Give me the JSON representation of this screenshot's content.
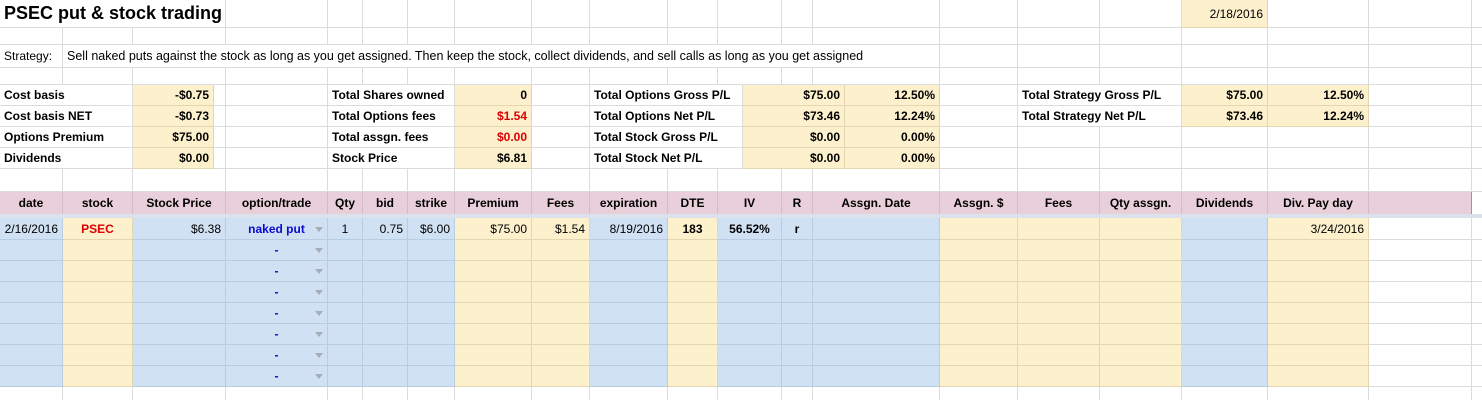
{
  "title": "PSEC put & stock trading",
  "date_top_right": "2/18/2016",
  "strategy": {
    "label": "Strategy:",
    "text": "Sell naked puts against the stock as long as you get assigned. Then keep the stock, collect dividends, and sell calls as long as you get assigned"
  },
  "summary": {
    "section1": [
      {
        "label": "Cost basis",
        "value": "-$0.75"
      },
      {
        "label": "Cost basis NET",
        "value": "-$0.73"
      },
      {
        "label": "Options Premium",
        "value": "$75.00"
      },
      {
        "label": "Dividends",
        "value": "$0.00"
      }
    ],
    "section2": [
      {
        "label": "Total Shares owned",
        "value": "0",
        "red": false
      },
      {
        "label": "Total Options fees",
        "value": "$1.54",
        "red": true
      },
      {
        "label": "Total assgn. fees",
        "value": "$0.00",
        "red": true
      },
      {
        "label": "Stock Price",
        "value": "$6.81",
        "red": false
      }
    ],
    "section3": [
      {
        "label": "Total Options Gross P/L",
        "value": "$75.00",
        "pct": "12.50%"
      },
      {
        "label": "Total Options Net P/L",
        "value": "$73.46",
        "pct": "12.24%"
      },
      {
        "label": "Total Stock Gross P/L",
        "value": "$0.00",
        "pct": "0.00%"
      },
      {
        "label": "Total Stock Net P/L",
        "value": "$0.00",
        "pct": "0.00%"
      }
    ],
    "section4": [
      {
        "label": "Total Strategy Gross P/L",
        "value": "$75.00",
        "pct": "12.50%"
      },
      {
        "label": "Total Strategy Net P/L",
        "value": "$73.46",
        "pct": "12.24%"
      }
    ]
  },
  "table": {
    "headers": [
      "date",
      "stock",
      "Stock Price",
      "option/trade",
      "Qty",
      "bid",
      "strike",
      "Premium",
      "Fees",
      "expiration",
      "DTE",
      "IV",
      "R",
      "Assgn. Date",
      "Assgn. $",
      "Fees",
      "Qty assgn.",
      "Dividends",
      "Div. Pay day"
    ],
    "row1": {
      "date": "2/16/2016",
      "stock": "PSEC",
      "stock_price": "$6.38",
      "option_trade": "naked put",
      "qty": "1",
      "bid": "0.75",
      "strike": "$6.00",
      "premium": "$75.00",
      "fees": "$1.54",
      "expiration": "8/19/2016",
      "dte": "183",
      "iv": "56.52%",
      "r": "r",
      "assgn_date": "",
      "assgn_amt": "",
      "fees_assgn": "",
      "qty_assgn": "",
      "dividends": "",
      "div_pay_day": "3/24/2016"
    },
    "empty_option_placeholder": "-",
    "empty_row_count": 7
  },
  "colors": {
    "cell_blue": "#cfe1f3",
    "cell_cream": "#fdf1cd",
    "header_pink": "#e8cfda",
    "divider": "#dce2eb",
    "text_red": "#dd0000",
    "text_blue": "#0b0bcf"
  }
}
